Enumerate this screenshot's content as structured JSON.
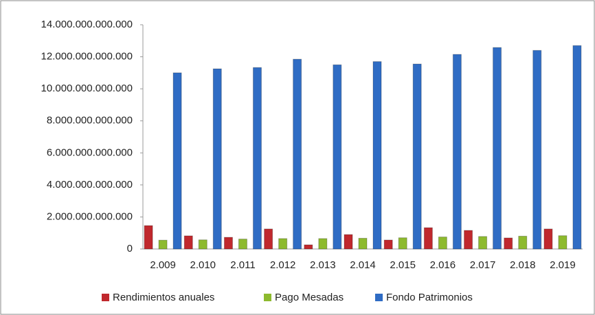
{
  "chart_data": {
    "type": "bar",
    "categories": [
      "2.009",
      "2.010",
      "2.011",
      "2.012",
      "2.013",
      "2.014",
      "2.015",
      "2.016",
      "2.017",
      "2.018",
      "2.019"
    ],
    "series": [
      {
        "name": "Rendimientos anuales",
        "color": "#c0282d",
        "values": [
          1460000000000,
          820000000000,
          730000000000,
          1250000000000,
          260000000000,
          900000000000,
          560000000000,
          1330000000000,
          1160000000000,
          690000000000,
          1250000000000
        ]
      },
      {
        "name": "Pago Mesadas",
        "color": "#8dba2e",
        "values": [
          550000000000,
          570000000000,
          620000000000,
          650000000000,
          650000000000,
          670000000000,
          700000000000,
          750000000000,
          780000000000,
          800000000000,
          830000000000
        ]
      },
      {
        "name": "Fondo Patrimonios",
        "color": "#2f6cc4",
        "values": [
          11000000000000,
          11250000000000,
          11330000000000,
          11850000000000,
          11500000000000,
          11700000000000,
          11550000000000,
          12150000000000,
          12580000000000,
          12400000000000,
          12700000000000
        ]
      }
    ],
    "ylim": [
      0,
      14000000000000
    ],
    "yticks": [
      0,
      {
        "value": 2000000000000,
        "label": "2.000.000.000.000"
      },
      {
        "value": 4000000000000,
        "label": "4.000.000.000.000"
      },
      {
        "value": 6000000000000,
        "label": "6.000.000.000.000"
      },
      {
        "value": 8000000000000,
        "label": "8.000.000.000.000"
      },
      {
        "value": 10000000000000,
        "label": "10.000.000.000.000"
      },
      {
        "value": 12000000000000,
        "label": "12.000.000.000.000"
      },
      {
        "value": 14000000000000,
        "label": "14.000.000.000.000"
      }
    ],
    "legend": "bottom"
  }
}
